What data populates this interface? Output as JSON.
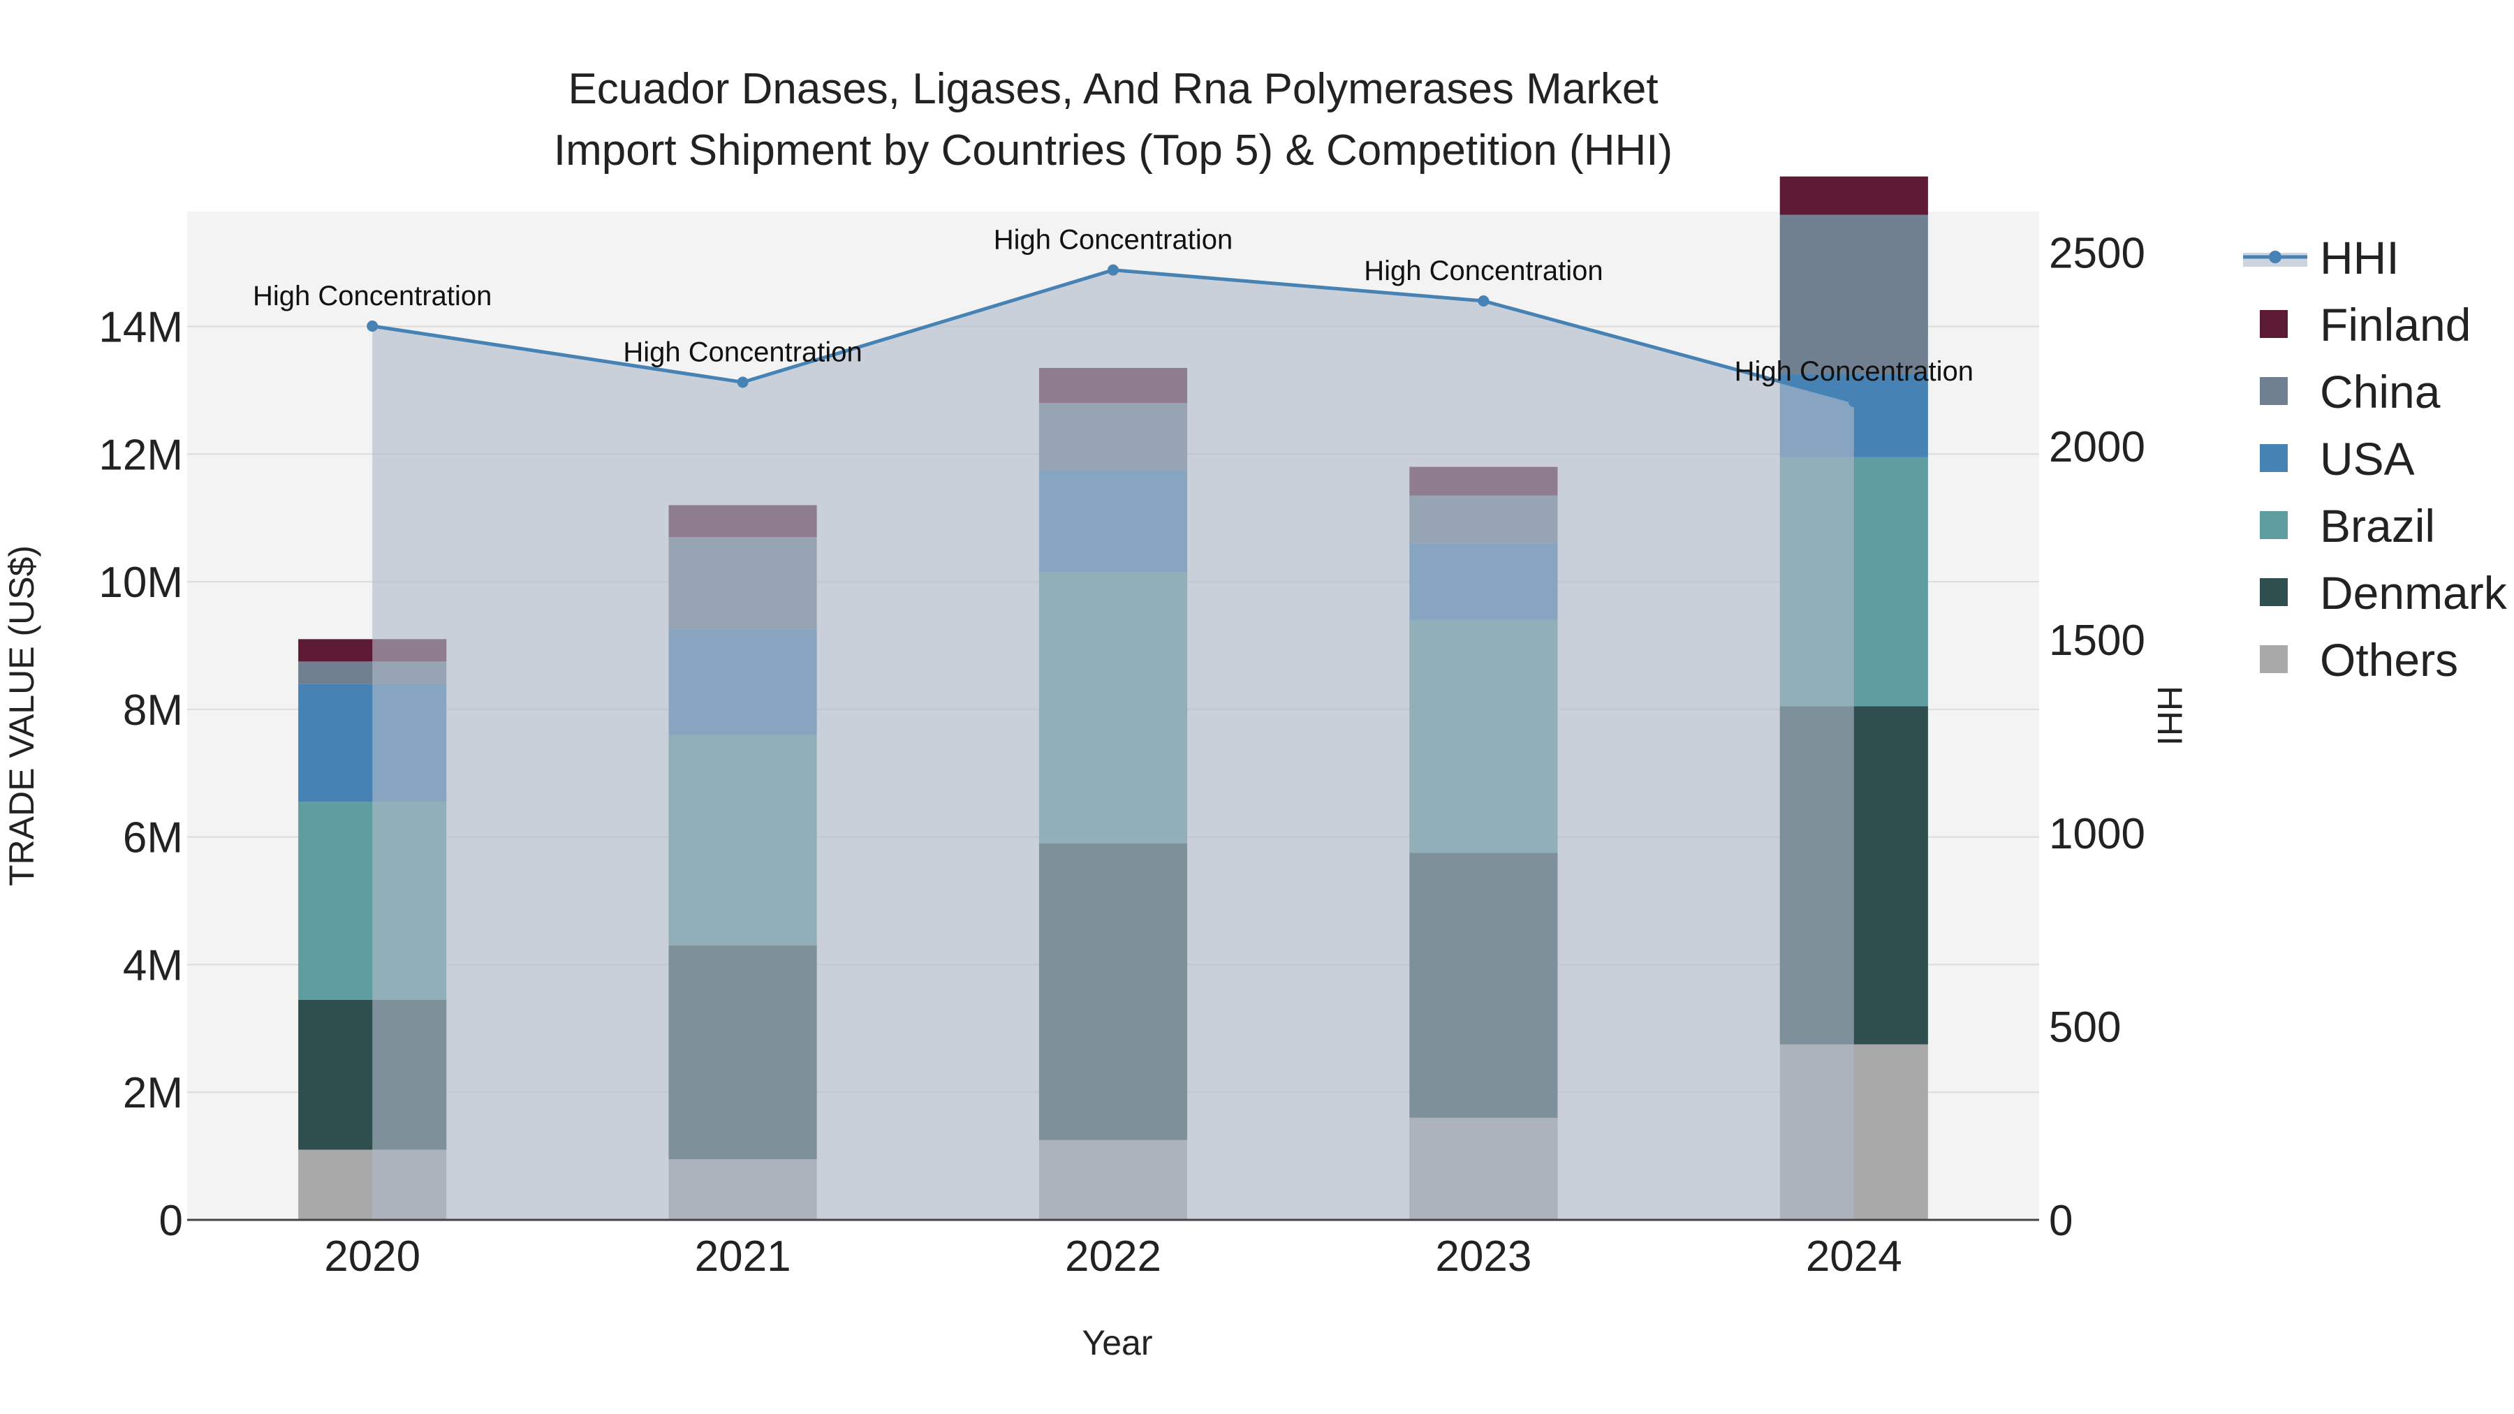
{
  "chart_data": {
    "type": "bar",
    "title_line1": "Ecuador Dnases, Ligases, And Rna Polymerases Market",
    "title_line2": "Import Shipment by Countries (Top 5) & Competition (HHI)",
    "xlabel": "Year",
    "ylabel": "TRADE VALUE (US$)",
    "y2label": "HHI",
    "categories": [
      "2020",
      "2021",
      "2022",
      "2023",
      "2024"
    ],
    "ylim": [
      0,
      15800000
    ],
    "y2lim": [
      0,
      2606
    ],
    "yticks": [
      {
        "value": 0,
        "label": "0"
      },
      {
        "value": 2000000,
        "label": "2M"
      },
      {
        "value": 4000000,
        "label": "4M"
      },
      {
        "value": 6000000,
        "label": "6M"
      },
      {
        "value": 8000000,
        "label": "8M"
      },
      {
        "value": 10000000,
        "label": "10M"
      },
      {
        "value": 12000000,
        "label": "12M"
      },
      {
        "value": 14000000,
        "label": "14M"
      }
    ],
    "y2ticks": [
      {
        "value": 0,
        "label": "0"
      },
      {
        "value": 500,
        "label": "500"
      },
      {
        "value": 1000,
        "label": "1000"
      },
      {
        "value": 1500,
        "label": "1500"
      },
      {
        "value": 2000,
        "label": "2000"
      },
      {
        "value": 2500,
        "label": "2500"
      }
    ],
    "series": [
      {
        "name": "Others",
        "color": "#a9a9a9",
        "values": [
          1100000,
          950000,
          1250000,
          1600000,
          2750000
        ]
      },
      {
        "name": "Denmark",
        "color": "#2f4f4f",
        "values": [
          2350000,
          3350000,
          4650000,
          4150000,
          5300000
        ]
      },
      {
        "name": "Brazil",
        "color": "#5f9ea0",
        "values": [
          3100000,
          3300000,
          4250000,
          3650000,
          3900000
        ]
      },
      {
        "name": "USA",
        "color": "#4682b4",
        "values": [
          1850000,
          1650000,
          1600000,
          1200000,
          1300000
        ]
      },
      {
        "name": "China",
        "color": "#708090",
        "values": [
          350000,
          1450000,
          1050000,
          750000,
          2500000
        ]
      },
      {
        "name": "Finland",
        "color": "#5c1a33",
        "values": [
          350000,
          500000,
          550000,
          450000,
          600000
        ]
      }
    ],
    "hhi": {
      "name": "HHI",
      "color": "#4682b4",
      "values": [
        2310,
        2165,
        2455,
        2375,
        2115
      ],
      "annotations": [
        "High Concentration",
        "High Concentration",
        "High Concentration",
        "High Concentration",
        "High Concentration"
      ]
    },
    "legend": [
      "HHI",
      "Finland",
      "China",
      "USA",
      "Brazil",
      "Denmark",
      "Others"
    ],
    "legend_position": "right"
  }
}
